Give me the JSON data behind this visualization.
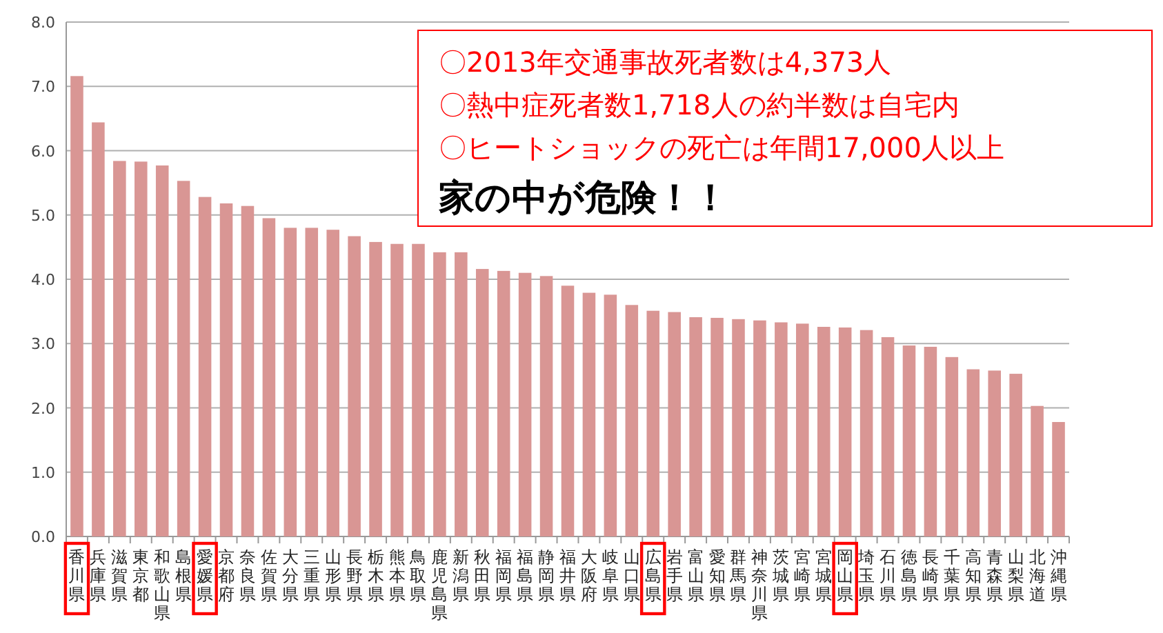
{
  "chart_data": {
    "type": "bar",
    "categories": [
      "香川県",
      "兵庫県",
      "滋賀県",
      "東京都",
      "和歌山県",
      "島根県",
      "愛媛県",
      "京都府",
      "奈良県",
      "佐賀県",
      "大分県",
      "三重県",
      "山形県",
      "長野県",
      "栃木県",
      "熊本県",
      "鳥取県",
      "鹿児島県",
      "新潟県",
      "秋田県",
      "福岡県",
      "福島県",
      "静岡県",
      "福井県",
      "大阪府",
      "岐阜県",
      "山口県",
      "広島県",
      "岩手県",
      "富山県",
      "愛知県",
      "群馬県",
      "神奈川県",
      "茨城県",
      "宮崎県",
      "宮城県",
      "岡山県",
      "埼玉県",
      "石川県",
      "徳島県",
      "長崎県",
      "千葉県",
      "高知県",
      "青森県",
      "山梨県",
      "北海道",
      "沖縄県"
    ],
    "values": [
      7.16,
      6.44,
      5.84,
      5.83,
      5.77,
      5.53,
      5.28,
      5.18,
      5.14,
      4.95,
      4.8,
      4.8,
      4.77,
      4.67,
      4.58,
      4.55,
      4.55,
      4.42,
      4.42,
      4.16,
      4.13,
      4.1,
      4.05,
      3.9,
      3.79,
      3.76,
      3.6,
      3.51,
      3.49,
      3.41,
      3.4,
      3.38,
      3.36,
      3.33,
      3.31,
      3.26,
      3.25,
      3.21,
      3.1,
      2.97,
      2.95,
      2.79,
      2.6,
      2.58,
      2.53,
      2.03,
      1.78
    ],
    "color": "#d99694",
    "ylim": [
      0,
      8
    ],
    "yticks": [
      {
        "value": 0,
        "label": "0.0"
      },
      {
        "value": 1,
        "label": "1.0"
      },
      {
        "value": 2,
        "label": "2.0"
      },
      {
        "value": 3,
        "label": "3.0"
      },
      {
        "value": 4,
        "label": "4.0"
      },
      {
        "value": 5,
        "label": "5.0"
      },
      {
        "value": 6,
        "label": "6.0"
      },
      {
        "value": 7,
        "label": "7.0"
      },
      {
        "value": 8,
        "label": "8.0"
      }
    ],
    "grid": "y",
    "annotations": [
      "〇2013年交通事故死者数は4,373人",
      "〇熱中症死者数1,718人の約半数は自宅内",
      "〇ヒートショックの死亡は年間17,000人以上",
      "家の中が危険！！"
    ]
  }
}
